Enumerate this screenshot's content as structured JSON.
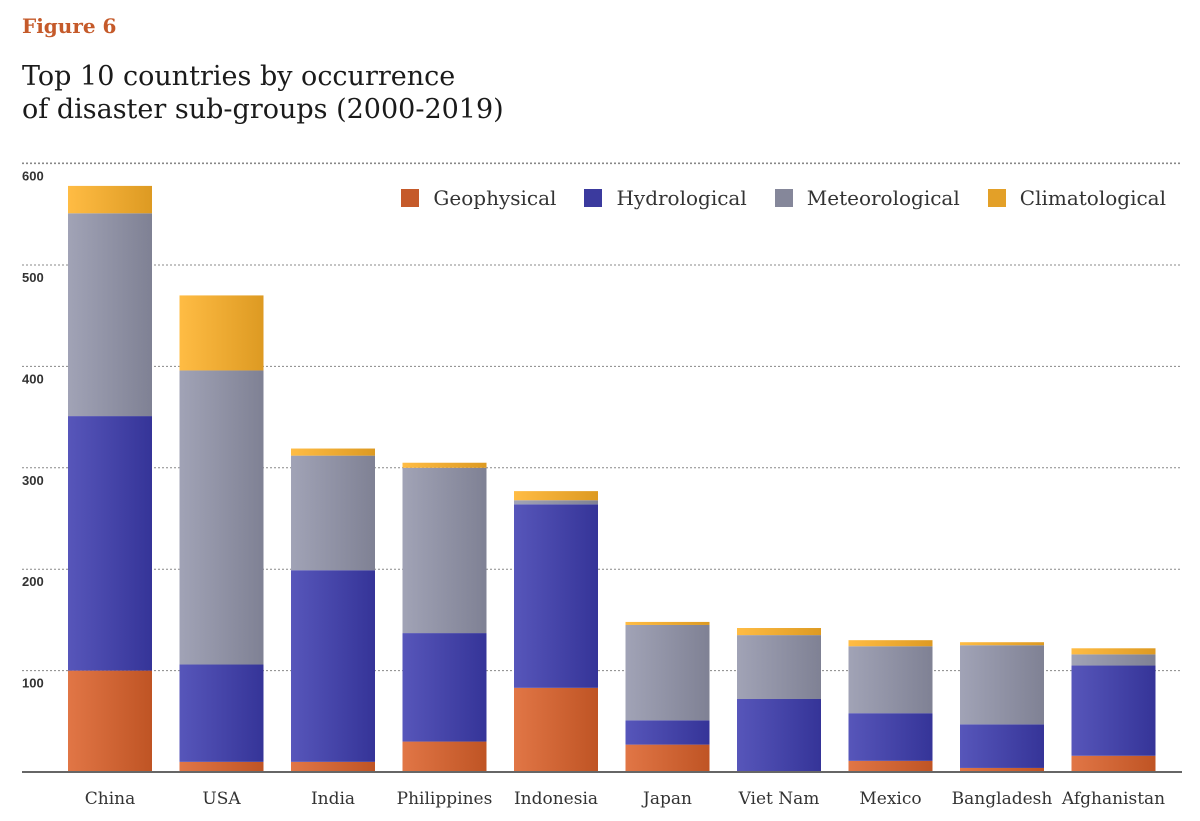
{
  "figure_label": "Figure 6",
  "title_line1": "Top 10 countries by occurrence",
  "title_line2": "of disaster sub-groups (2000-2019)",
  "chart_data": {
    "type": "bar",
    "stacked": true,
    "title": "Top 10 countries by occurrence of disaster sub-groups (2000-2019)",
    "xlabel": "",
    "ylabel": "",
    "ylim": [
      0,
      600
    ],
    "yticks": [
      100,
      200,
      300,
      400,
      500,
      600
    ],
    "grid": true,
    "legend_position": "top-right",
    "categories": [
      "China",
      "USA",
      "India",
      "Philippines",
      "Indonesia",
      "Japan",
      "Viet Nam",
      "Mexico",
      "Bangladesh",
      "Afghanistan"
    ],
    "series": [
      {
        "name": "Geophysical",
        "color": "#c55a2a",
        "values": [
          100,
          10,
          10,
          30,
          83,
          27,
          0,
          11,
          4,
          16
        ]
      },
      {
        "name": "Hydrological",
        "color": "#3b3a9e",
        "values": [
          251,
          96,
          189,
          107,
          181,
          24,
          72,
          47,
          43,
          89
        ]
      },
      {
        "name": "Meteorological",
        "color": "#85879a",
        "values": [
          200,
          290,
          113,
          163,
          4,
          94,
          63,
          66,
          78,
          11
        ]
      },
      {
        "name": "Climatological",
        "color": "#e3a028",
        "values": [
          27,
          74,
          7,
          5,
          9,
          3,
          7,
          6,
          3,
          6
        ]
      }
    ]
  }
}
